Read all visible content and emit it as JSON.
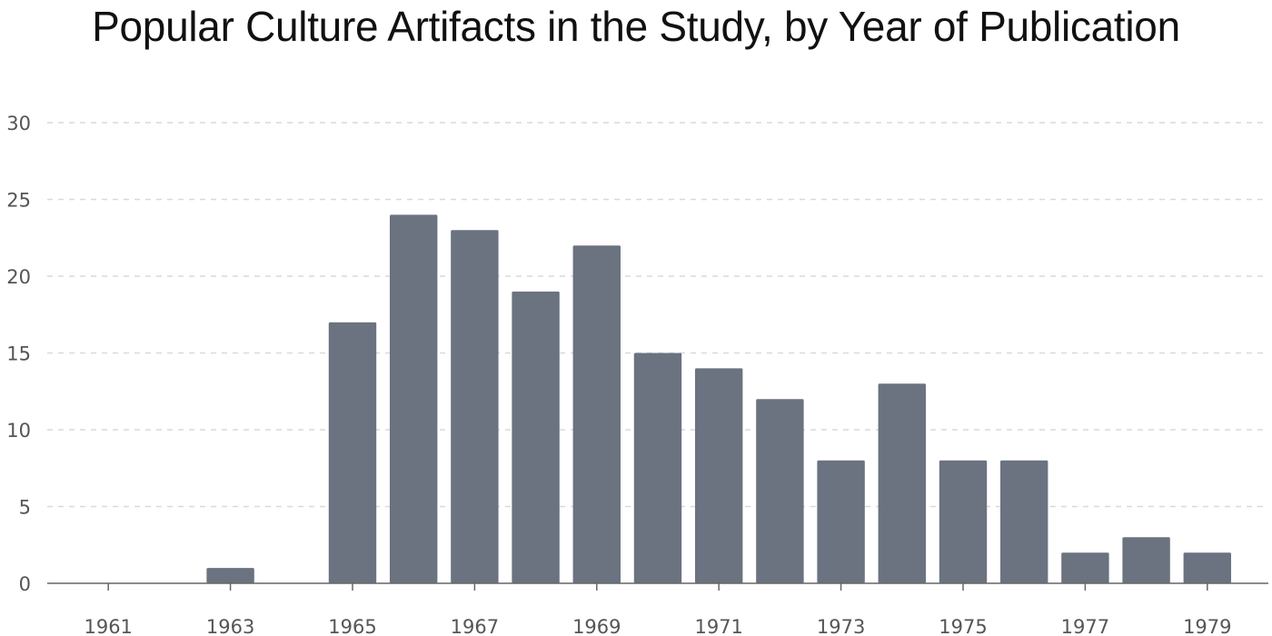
{
  "chart_data": {
    "type": "bar",
    "title": "Popular Culture Artifacts in the Study, by Year of Publication",
    "xlabel": "",
    "ylabel": "",
    "categories": [
      "1961",
      "1962",
      "1963",
      "1964",
      "1965",
      "1966",
      "1967",
      "1968",
      "1969",
      "1970",
      "1971",
      "1972",
      "1973",
      "1974",
      "1975",
      "1976",
      "1977",
      "1978",
      "1979"
    ],
    "values": [
      0,
      0,
      1,
      0,
      17,
      24,
      23,
      19,
      22,
      15,
      14,
      12,
      8,
      13,
      8,
      8,
      2,
      3,
      2
    ],
    "x_tick_labels": [
      "1961",
      "1963",
      "1965",
      "1967",
      "1969",
      "1971",
      "1973",
      "1975",
      "1977",
      "1979"
    ],
    "y_ticks": [
      0,
      5,
      10,
      15,
      20,
      25,
      30
    ],
    "ylim": [
      0,
      30
    ],
    "grid": true,
    "legend": "none",
    "colors": {
      "bar": "#6b7280",
      "grid": "#d9d9d9",
      "axis": "#666666"
    }
  }
}
